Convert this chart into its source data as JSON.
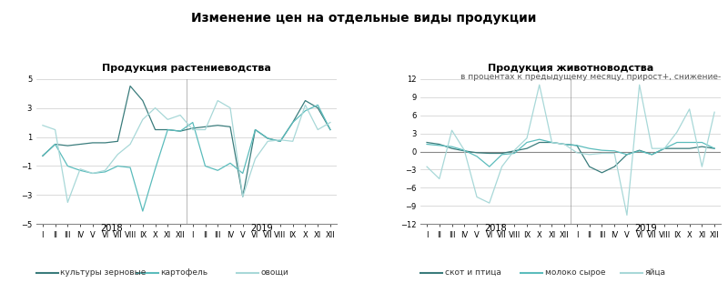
{
  "title": "Изменение цен на отдельные виды продукции",
  "subtitle": "в процентах к предыдущему месяцу, прирост+, снижение-",
  "months_ru": [
    "I",
    "II",
    "III",
    "IV",
    "V",
    "VI",
    "VII",
    "VIII",
    "IX",
    "X",
    "XI",
    "XII",
    "I",
    "II",
    "III",
    "IV",
    "V",
    "VI",
    "VII",
    "VIII",
    "IX",
    "X",
    "XI",
    "XII"
  ],
  "year_labels": [
    "2018",
    "2019"
  ],
  "left_title": "Продукция растениеводства",
  "right_title": "Продукция животноводства",
  "left_ylim": [
    -5.0,
    5.0
  ],
  "left_yticks": [
    -5.0,
    -3.0,
    -1.0,
    1.0,
    3.0,
    5.0
  ],
  "right_ylim": [
    -12.0,
    12.0
  ],
  "right_yticks": [
    -12.0,
    -9.0,
    -6.0,
    -3.0,
    0.0,
    3.0,
    6.0,
    9.0,
    12.0
  ],
  "zeroline_color": "#888888",
  "gridline_color": "#cccccc",
  "series_left": {
    "kultury_zernovye": {
      "label": "культуры зерновые",
      "color": "#3a7c7c",
      "data": [
        -0.3,
        0.5,
        0.4,
        0.5,
        0.6,
        0.6,
        0.7,
        4.5,
        3.5,
        1.5,
        1.5,
        1.4,
        1.6,
        1.7,
        1.8,
        1.7,
        -3.1,
        1.5,
        0.9,
        0.7,
        2.0,
        3.5,
        3.0,
        1.5
      ]
    },
    "kartofel": {
      "label": "картофель",
      "color": "#5bbcbc",
      "data": [
        -0.3,
        0.5,
        -1.0,
        -1.3,
        -1.5,
        -1.4,
        -1.0,
        -1.1,
        -4.1,
        -1.2,
        1.5,
        1.4,
        2.0,
        -1.0,
        -1.3,
        -0.8,
        -1.5,
        1.5,
        0.9,
        0.7,
        2.0,
        2.8,
        3.2,
        1.5
      ]
    },
    "ovoshi": {
      "label": "овощи",
      "color": "#a8d8d8",
      "data": [
        1.8,
        1.5,
        -3.5,
        -1.2,
        -1.5,
        -1.3,
        -0.2,
        0.5,
        2.2,
        3.0,
        2.2,
        2.5,
        1.5,
        1.5,
        3.5,
        3.0,
        -3.1,
        -0.5,
        0.7,
        0.8,
        0.7,
        3.2,
        1.5,
        2.0
      ]
    }
  },
  "series_right": {
    "skot_i_ptitsa": {
      "label": "скот и птица",
      "color": "#3a7c7c",
      "data": [
        1.5,
        1.2,
        0.5,
        0.1,
        -0.2,
        -0.3,
        -0.3,
        0.1,
        0.5,
        1.5,
        1.5,
        1.2,
        1.0,
        -2.5,
        -3.5,
        -2.5,
        -0.5,
        0.2,
        -0.5,
        0.5,
        0.5,
        0.5,
        0.8,
        0.5
      ]
    },
    "moloko_syroe": {
      "label": "молоко сырое",
      "color": "#5bbcbc",
      "data": [
        1.2,
        1.0,
        0.8,
        0.2,
        -0.8,
        -2.5,
        -0.5,
        -0.3,
        1.5,
        2.0,
        1.5,
        1.2,
        1.0,
        0.5,
        0.2,
        0.1,
        -0.5,
        0.1,
        -0.5,
        0.5,
        1.5,
        1.5,
        1.5,
        0.5
      ]
    },
    "yaytsa": {
      "label": "яйца",
      "color": "#a8d8d8",
      "data": [
        -2.5,
        -4.5,
        3.5,
        0.2,
        -7.5,
        -8.5,
        -2.5,
        0.2,
        2.2,
        11.0,
        1.5,
        1.2,
        -0.2,
        -0.5,
        -0.3,
        -0.3,
        -10.5,
        11.0,
        0.5,
        0.5,
        3.2,
        7.0,
        -2.5,
        6.5
      ]
    }
  },
  "bg_color": "#ffffff",
  "title_fontsize": 10,
  "subtitle_fontsize": 6.5,
  "axis_title_fontsize": 8,
  "tick_fontsize": 6,
  "year_fontsize": 7,
  "legend_fontsize": 6.5
}
